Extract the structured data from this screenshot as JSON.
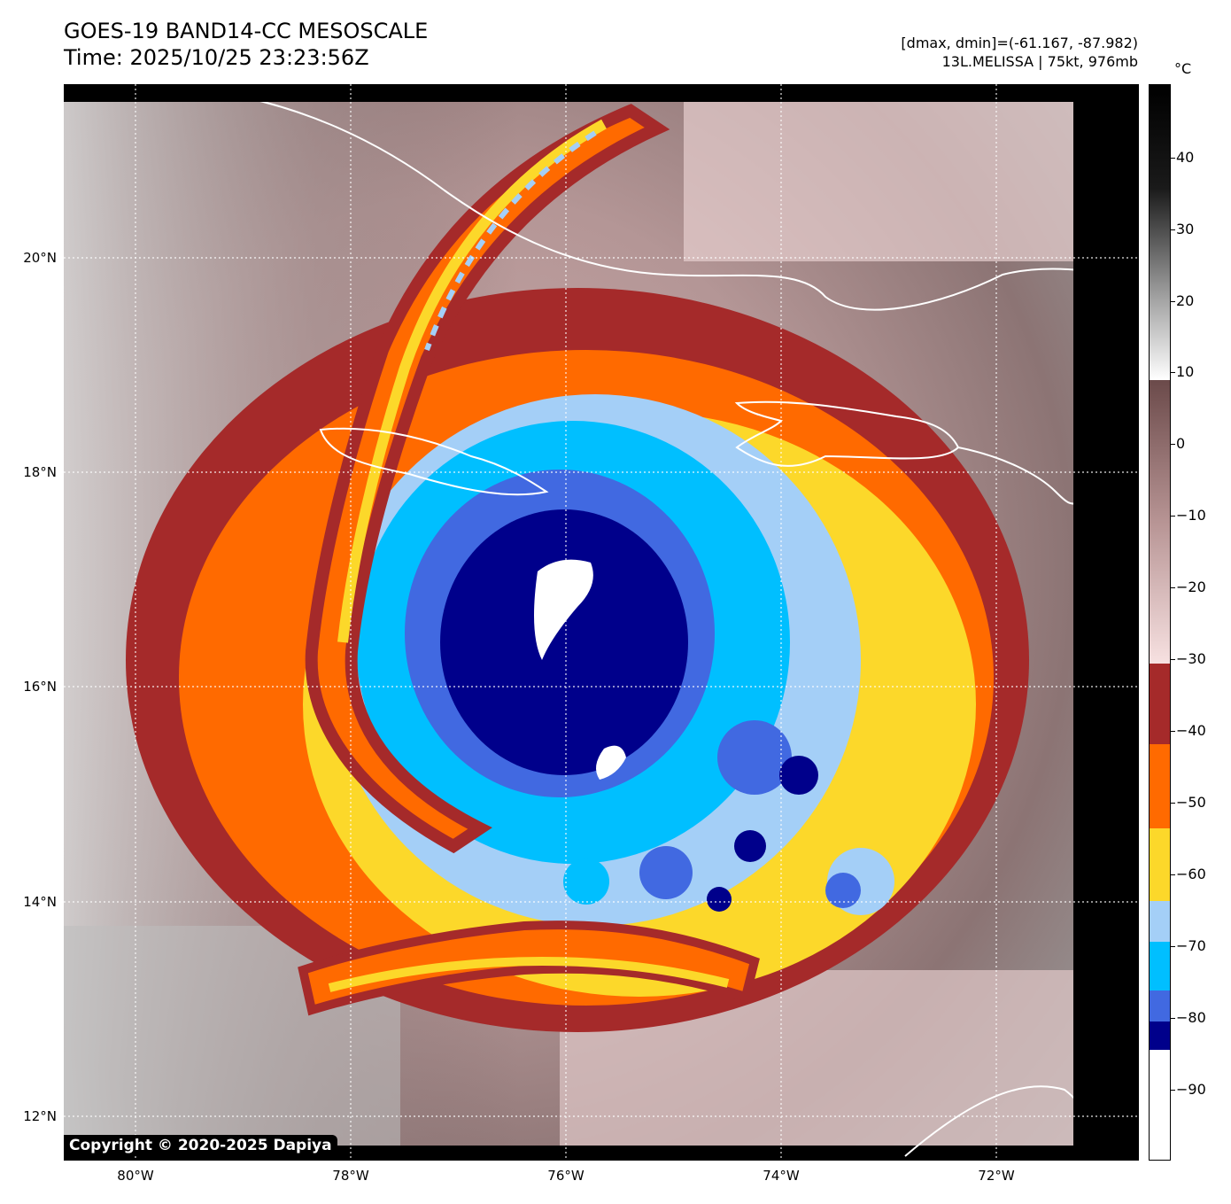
{
  "title": {
    "line1": "GOES-19 BAND14-CC MESOSCALE",
    "line2": "Time: 2025/10/25 23:23:56Z"
  },
  "info": {
    "line1": "[dmax, dmin]=(-61.167, -87.982)",
    "line2": "13L.MELISSA | 75kt, 976mb"
  },
  "copyright": "Copyright © 2020-2025 Dapiya",
  "axes": {
    "lat_labels": [
      "20°N",
      "18°N",
      "16°N",
      "14°N",
      "12°N"
    ],
    "lon_labels": [
      "80°W",
      "78°W",
      "76°W",
      "74°W",
      "72°W"
    ]
  },
  "colorbar": {
    "unit": "°C",
    "ticks": [
      "40",
      "30",
      "20",
      "10",
      "0",
      "−10",
      "−20",
      "−30",
      "−40",
      "−50",
      "−60",
      "−70",
      "−80",
      "−90"
    ],
    "range": [
      -100,
      50
    ],
    "colors": {
      "black": "#000000",
      "dark_red": "#a52a2a",
      "orange": "#ff6a00",
      "yellow": "#fcd82a",
      "light_blue": "#a4cff7",
      "cyan": "#00bfff",
      "royal_blue": "#4169e1",
      "navy": "#00008b",
      "white": "#ffffff"
    }
  },
  "storm": {
    "name": "13L.MELISSA",
    "center_lat": 16.6,
    "center_lon": -76.3
  }
}
